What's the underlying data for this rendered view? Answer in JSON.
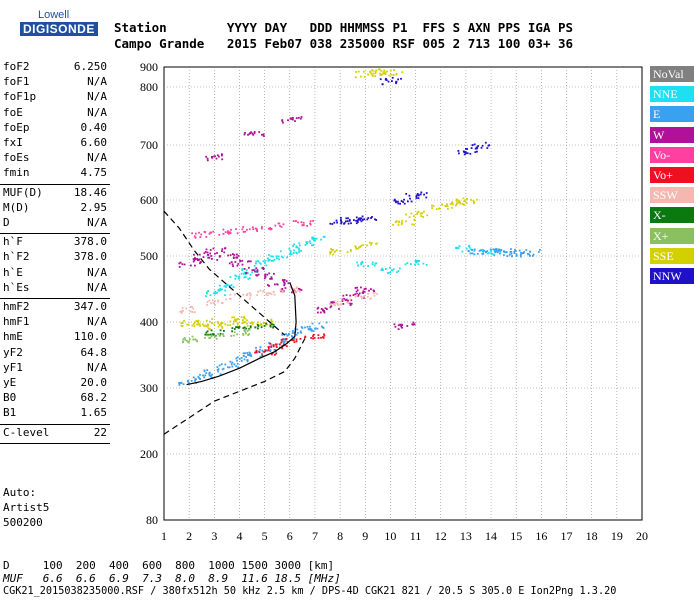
{
  "logo": {
    "top": "Lowell",
    "main": "DIGISONDE"
  },
  "header": {
    "row1": "Station        YYYY DAY   DDD HHMMSS P1  FFS S AXN PPS IGA PS",
    "row2": "Campo Grande   2015 Feb07 038 235000 RSF 005 2 713 100 03+ 36"
  },
  "params_group1": [
    {
      "k": "foF2",
      "v": "6.250"
    },
    {
      "k": "foF1",
      "v": "N/A"
    },
    {
      "k": "foF1p",
      "v": "N/A"
    },
    {
      "k": "foE",
      "v": "N/A"
    },
    {
      "k": "foEp",
      "v": "0.40"
    },
    {
      "k": "fxI",
      "v": "6.60"
    },
    {
      "k": "foEs",
      "v": "N/A"
    },
    {
      "k": "fmin",
      "v": "4.75"
    }
  ],
  "params_group2": [
    {
      "k": "MUF(D)",
      "v": "18.46"
    },
    {
      "k": "M(D)",
      "v": "2.95"
    },
    {
      "k": "D",
      "v": "N/A"
    }
  ],
  "params_group3": [
    {
      "k": "h`F",
      "v": "378.0"
    },
    {
      "k": "h`F2",
      "v": "378.0"
    },
    {
      "k": "h`E",
      "v": "N/A"
    },
    {
      "k": "h`Es",
      "v": "N/A"
    }
  ],
  "params_group4": [
    {
      "k": "hmF2",
      "v": "347.0"
    },
    {
      "k": "hmF1",
      "v": "N/A"
    },
    {
      "k": "hmE",
      "v": "110.0"
    },
    {
      "k": "yF2",
      "v": "64.8"
    },
    {
      "k": "yF1",
      "v": "N/A"
    },
    {
      "k": "yE",
      "v": "20.0"
    },
    {
      "k": "B0",
      "v": "68.2"
    },
    {
      "k": "B1",
      "v": "1.65"
    }
  ],
  "params_group5": [
    {
      "k": "C-level",
      "v": "22"
    }
  ],
  "notes": {
    "auto": "Auto:",
    "artist": "Artist5",
    "version": "500200"
  },
  "legend": [
    {
      "label": "NoVal",
      "color": "#808080"
    },
    {
      "label": "NNE",
      "color": "#1ee0f0"
    },
    {
      "label": "E",
      "color": "#3aa0f0"
    },
    {
      "label": "W",
      "color": "#b0109a"
    },
    {
      "label": "Vo-",
      "color": "#ff40a0"
    },
    {
      "label": "Vo+",
      "color": "#ee1020"
    },
    {
      "label": "SSW",
      "color": "#f4b8b0"
    },
    {
      "label": "X-",
      "color": "#0a7a10"
    },
    {
      "label": "X+",
      "color": "#8ac060"
    },
    {
      "label": "SSE",
      "color": "#d4d000"
    },
    {
      "label": "NNW",
      "color": "#2010c8"
    }
  ],
  "footer": {
    "d_row": "D     100  200  400  600  800  1000 1500 3000 [km]",
    "muf_row": "MUF   6.6  6.6  6.9  7.3  8.0  8.9  11.6 18.5 [MHz]",
    "file_row": "CGK21_2015038235000.RSF / 380fx512h 50 kHz 2.5 km / DPS-4D CGK21 821 / 20.5 S 305.0 E Ion2Png 1.3.20"
  },
  "chart_data": {
    "type": "scatter",
    "x_ticks": [
      "1",
      "2",
      "3",
      "4",
      "5",
      "6",
      "7",
      "8",
      "9",
      "10",
      "11",
      "12",
      "13",
      "14",
      "15",
      "16",
      "17",
      "18",
      "19",
      "20"
    ],
    "y_ticks": [
      "80",
      "200",
      "300",
      "400",
      "500",
      "600",
      "700",
      "800",
      "900"
    ],
    "xlim": [
      1,
      20
    ],
    "ylim": [
      80,
      900
    ],
    "grid": true,
    "y_scale_note": "frequency MHz vs virtual height km",
    "clusters": [
      {
        "name": "NNE",
        "x": [
          3.0,
          3.5,
          4.0,
          4.5,
          5.0,
          5.5,
          6.0,
          6.5,
          7.0,
          9.0,
          10.0,
          11.0,
          13.0,
          14.0
        ],
        "y": [
          445,
          455,
          470,
          480,
          490,
          500,
          510,
          520,
          530,
          490,
          480,
          490,
          515,
          510
        ]
      },
      {
        "name": "E",
        "x": [
          2.0,
          2.5,
          3.0,
          3.5,
          4.0,
          4.5,
          5.0,
          5.5,
          6.0,
          13.5,
          14.0,
          14.5,
          15.0,
          15.5,
          6.5,
          7.0
        ],
        "y": [
          310,
          318,
          325,
          335,
          345,
          352,
          360,
          368,
          380,
          510,
          510,
          508,
          507,
          506,
          390,
          395
        ]
      },
      {
        "name": "W",
        "x": [
          2.0,
          2.5,
          3.0,
          3.5,
          4.0,
          4.5,
          5.0,
          5.5,
          6.0,
          7.5,
          8.0,
          8.5,
          9.0,
          10.5,
          3.0,
          4.5,
          6.0
        ],
        "y": [
          490,
          500,
          510,
          500,
          490,
          480,
          470,
          460,
          450,
          420,
          430,
          440,
          450,
          395,
          680,
          720,
          745
        ]
      },
      {
        "name": "SSW",
        "x": [
          2.0,
          3.0,
          4.0,
          5.0,
          6.0,
          8.0,
          9.0
        ],
        "y": [
          420,
          430,
          440,
          445,
          450,
          430,
          440
        ]
      },
      {
        "name": "SSE",
        "x": [
          2.0,
          2.5,
          3.0,
          3.5,
          4.0,
          4.5,
          5.0,
          8.0,
          9.0,
          10.5,
          11.0,
          12.0,
          12.5,
          13.0,
          9.0,
          9.5,
          10.0
        ],
        "y": [
          400,
          400,
          395,
          400,
          405,
          398,
          400,
          510,
          520,
          560,
          575,
          590,
          595,
          600,
          870,
          880,
          875
        ]
      },
      {
        "name": "NNW",
        "x": [
          8.0,
          8.5,
          9.0,
          10.5,
          11.0,
          10.0,
          13.0,
          13.5
        ],
        "y": [
          565,
          565,
          568,
          600,
          610,
          835,
          690,
          700
        ]
      },
      {
        "name": "Vo-",
        "x": [
          2.5,
          3.5,
          4.5,
          5.5,
          6.5
        ],
        "y": [
          540,
          545,
          550,
          555,
          560
        ]
      },
      {
        "name": "Vo+",
        "x": [
          5.0,
          5.5,
          6.0,
          7.0
        ],
        "y": [
          355,
          365,
          372,
          380
        ]
      },
      {
        "name": "X-",
        "x": [
          3.0,
          4.0,
          5.0
        ],
        "y": [
          385,
          390,
          395
        ]
      },
      {
        "name": "X+",
        "x": [
          2.0,
          3.0,
          4.0
        ],
        "y": [
          375,
          380,
          385
        ]
      }
    ],
    "profile_solid": {
      "x": [
        1.9,
        2.5,
        3.2,
        4.0,
        4.8,
        5.4,
        5.9,
        6.2,
        6.25,
        6.2,
        6.0
      ],
      "y": [
        305,
        310,
        318,
        330,
        345,
        355,
        368,
        378,
        400,
        440,
        460
      ]
    },
    "profile_dashed_left": {
      "x": [
        1.0,
        1.6,
        2.2,
        2.8,
        3.4,
        4.0,
        4.6,
        5.2,
        5.8
      ],
      "y": [
        580,
        550,
        510,
        480,
        460,
        440,
        420,
        400,
        380
      ]
    },
    "profile_dashed_bottom": {
      "x": [
        1.0,
        2.0,
        3.0,
        4.0,
        5.0,
        5.8,
        6.2,
        6.6
      ],
      "y": [
        230,
        255,
        280,
        295,
        310,
        325,
        345,
        375
      ]
    }
  }
}
